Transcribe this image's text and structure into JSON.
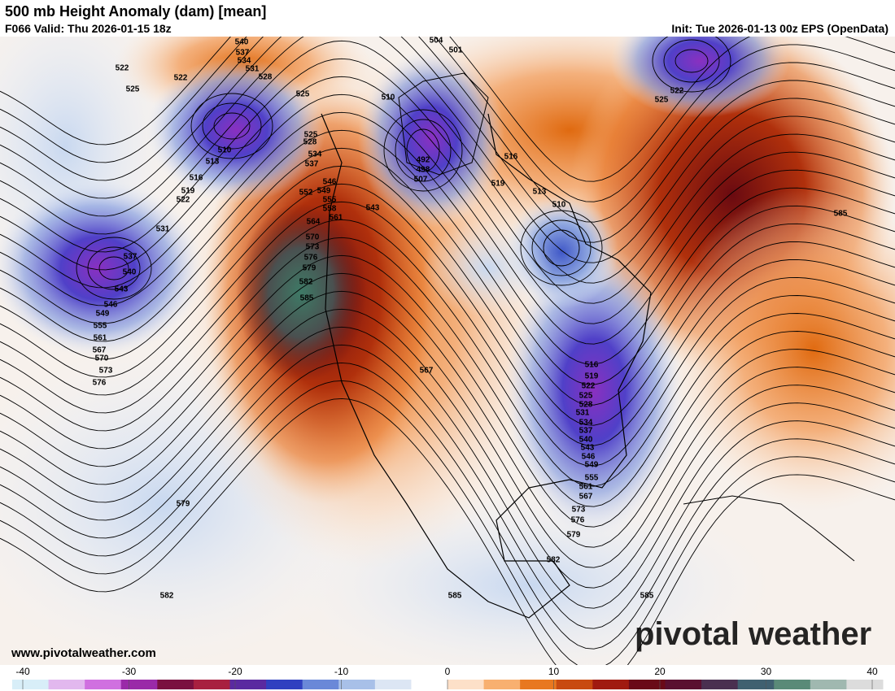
{
  "header": {
    "title": "500 mb Height Anomaly (dam) [mean]",
    "valid": "F066 Valid: Thu 2026-01-15 18z",
    "init": "Init: Tue 2026-01-13 00z EPS (OpenData)"
  },
  "contour_labels": [
    540,
    537,
    534,
    531,
    528,
    522,
    525,
    522,
    525,
    504,
    501,
    510,
    522,
    525,
    510,
    513,
    516,
    519,
    522,
    531,
    537,
    540,
    543,
    546,
    549,
    555,
    561,
    567,
    570,
    573,
    576,
    525,
    528,
    534,
    537,
    546,
    549,
    552,
    555,
    558,
    561,
    564,
    570,
    573,
    576,
    579,
    582,
    585,
    543,
    492,
    498,
    507,
    516,
    519,
    513,
    510,
    585,
    567,
    516,
    519,
    522,
    525,
    528,
    531,
    534,
    537,
    540,
    543,
    546,
    549,
    555,
    561,
    567,
    573,
    576,
    579,
    582,
    585,
    585,
    579,
    582
  ],
  "colorbar": {
    "ticks": [
      -40,
      -30,
      -20,
      -10,
      0,
      10,
      20,
      30,
      40
    ],
    "colors": [
      "#d8eef8",
      "#e2b8ee",
      "#d070e0",
      "#9a2aa8",
      "#7a1040",
      "#a82040",
      "#5a2aa0",
      "#3040c0",
      "#6a88d8",
      "#a8c0e8",
      "#dce6f4",
      "#ffffff",
      "#fde0c8",
      "#f8b070",
      "#e87820",
      "#c84a10",
      "#a01a10",
      "#6a0a18",
      "#5a1030",
      "#4a3050",
      "#406070",
      "#5a8a78",
      "#a0b8b0",
      "#dcdcdc"
    ]
  },
  "footer": {
    "url": "www.pivotalweather.com",
    "brand": "pivotal weather"
  }
}
